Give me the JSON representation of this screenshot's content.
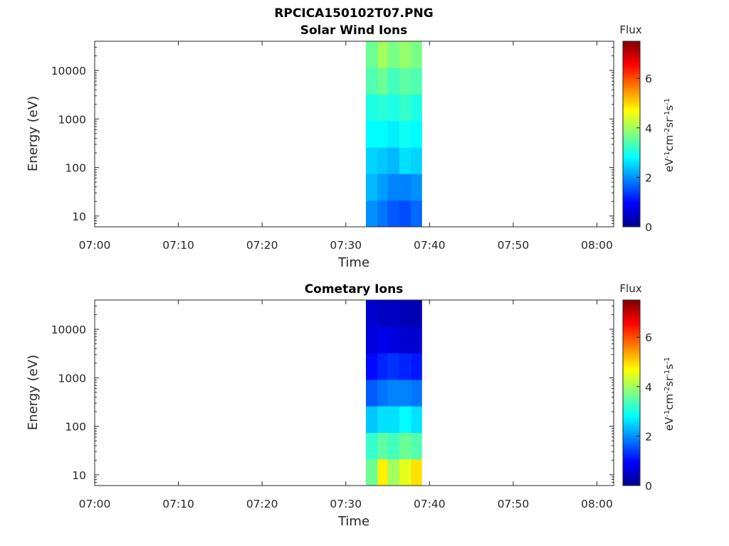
{
  "page_title": "RPCICA150102T07.PNG",
  "chart_data": [
    {
      "type": "heatmap",
      "title": "Solar Wind Ions",
      "xlabel": "Time",
      "ylabel": "Energy (eV)",
      "x_ticks": [
        "07:00",
        "07:10",
        "07:20",
        "07:30",
        "07:40",
        "07:50",
        "08:00"
      ],
      "y_ticks": [
        "10",
        "100",
        "1000",
        "10000"
      ],
      "y_scale": "log",
      "ylim": [
        6,
        40000
      ],
      "xlim": [
        "07:00",
        "08:02"
      ],
      "colorbar": {
        "title": "Flux",
        "label": "eV-1cm-2sr-1s-1",
        "ticks": [
          "0",
          "2",
          "4",
          "6"
        ],
        "range": [
          0,
          7.5
        ],
        "colormap": "jet"
      },
      "bands": [
        {
          "t0": 32.4,
          "t1": 33.8,
          "levels": [
            2.0,
            2.3,
            2.5,
            2.8,
            3.0,
            3.4,
            3.6
          ]
        },
        {
          "t0": 33.8,
          "t1": 35.0,
          "levels": [
            1.8,
            2.1,
            2.4,
            2.8,
            3.1,
            3.6,
            4.0
          ]
        },
        {
          "t0": 35.0,
          "t1": 36.4,
          "levels": [
            1.6,
            1.9,
            2.3,
            2.7,
            3.0,
            3.3,
            3.7
          ]
        },
        {
          "t0": 36.4,
          "t1": 37.8,
          "levels": [
            1.5,
            1.9,
            2.6,
            2.9,
            3.2,
            3.5,
            3.9
          ]
        },
        {
          "t0": 37.8,
          "t1": 39.1,
          "levels": [
            1.7,
            2.0,
            2.5,
            2.8,
            3.0,
            3.4,
            3.7
          ]
        }
      ],
      "grid": false
    },
    {
      "type": "heatmap",
      "title": "Cometary Ions",
      "xlabel": "Time",
      "ylabel": "Energy (eV)",
      "x_ticks": [
        "07:00",
        "07:10",
        "07:20",
        "07:30",
        "07:40",
        "07:50",
        "08:00"
      ],
      "y_ticks": [
        "10",
        "100",
        "1000",
        "10000"
      ],
      "y_scale": "log",
      "ylim": [
        6,
        40000
      ],
      "xlim": [
        "07:00",
        "08:02"
      ],
      "colorbar": {
        "title": "Flux",
        "label": "eV-1cm-2sr-1s-1",
        "ticks": [
          "0",
          "2",
          "4",
          "6"
        ],
        "range": [
          0,
          7.5
        ],
        "colormap": "jet"
      },
      "bands": [
        {
          "t0": 32.4,
          "t1": 33.8,
          "levels": [
            3.6,
            3.2,
            2.4,
            1.6,
            1.0,
            0.7,
            0.6
          ]
        },
        {
          "t0": 33.8,
          "t1": 35.0,
          "levels": [
            4.8,
            3.5,
            2.6,
            1.8,
            1.2,
            0.8,
            0.5
          ]
        },
        {
          "t0": 35.0,
          "t1": 36.4,
          "levels": [
            4.0,
            3.3,
            2.6,
            1.9,
            1.3,
            0.7,
            0.5
          ]
        },
        {
          "t0": 36.4,
          "t1": 37.8,
          "levels": [
            4.5,
            3.6,
            2.8,
            1.9,
            1.2,
            0.6,
            0.4
          ]
        },
        {
          "t0": 37.8,
          "t1": 39.1,
          "levels": [
            4.9,
            3.4,
            2.6,
            1.8,
            1.1,
            0.6,
            0.4
          ]
        }
      ],
      "grid": false
    }
  ]
}
